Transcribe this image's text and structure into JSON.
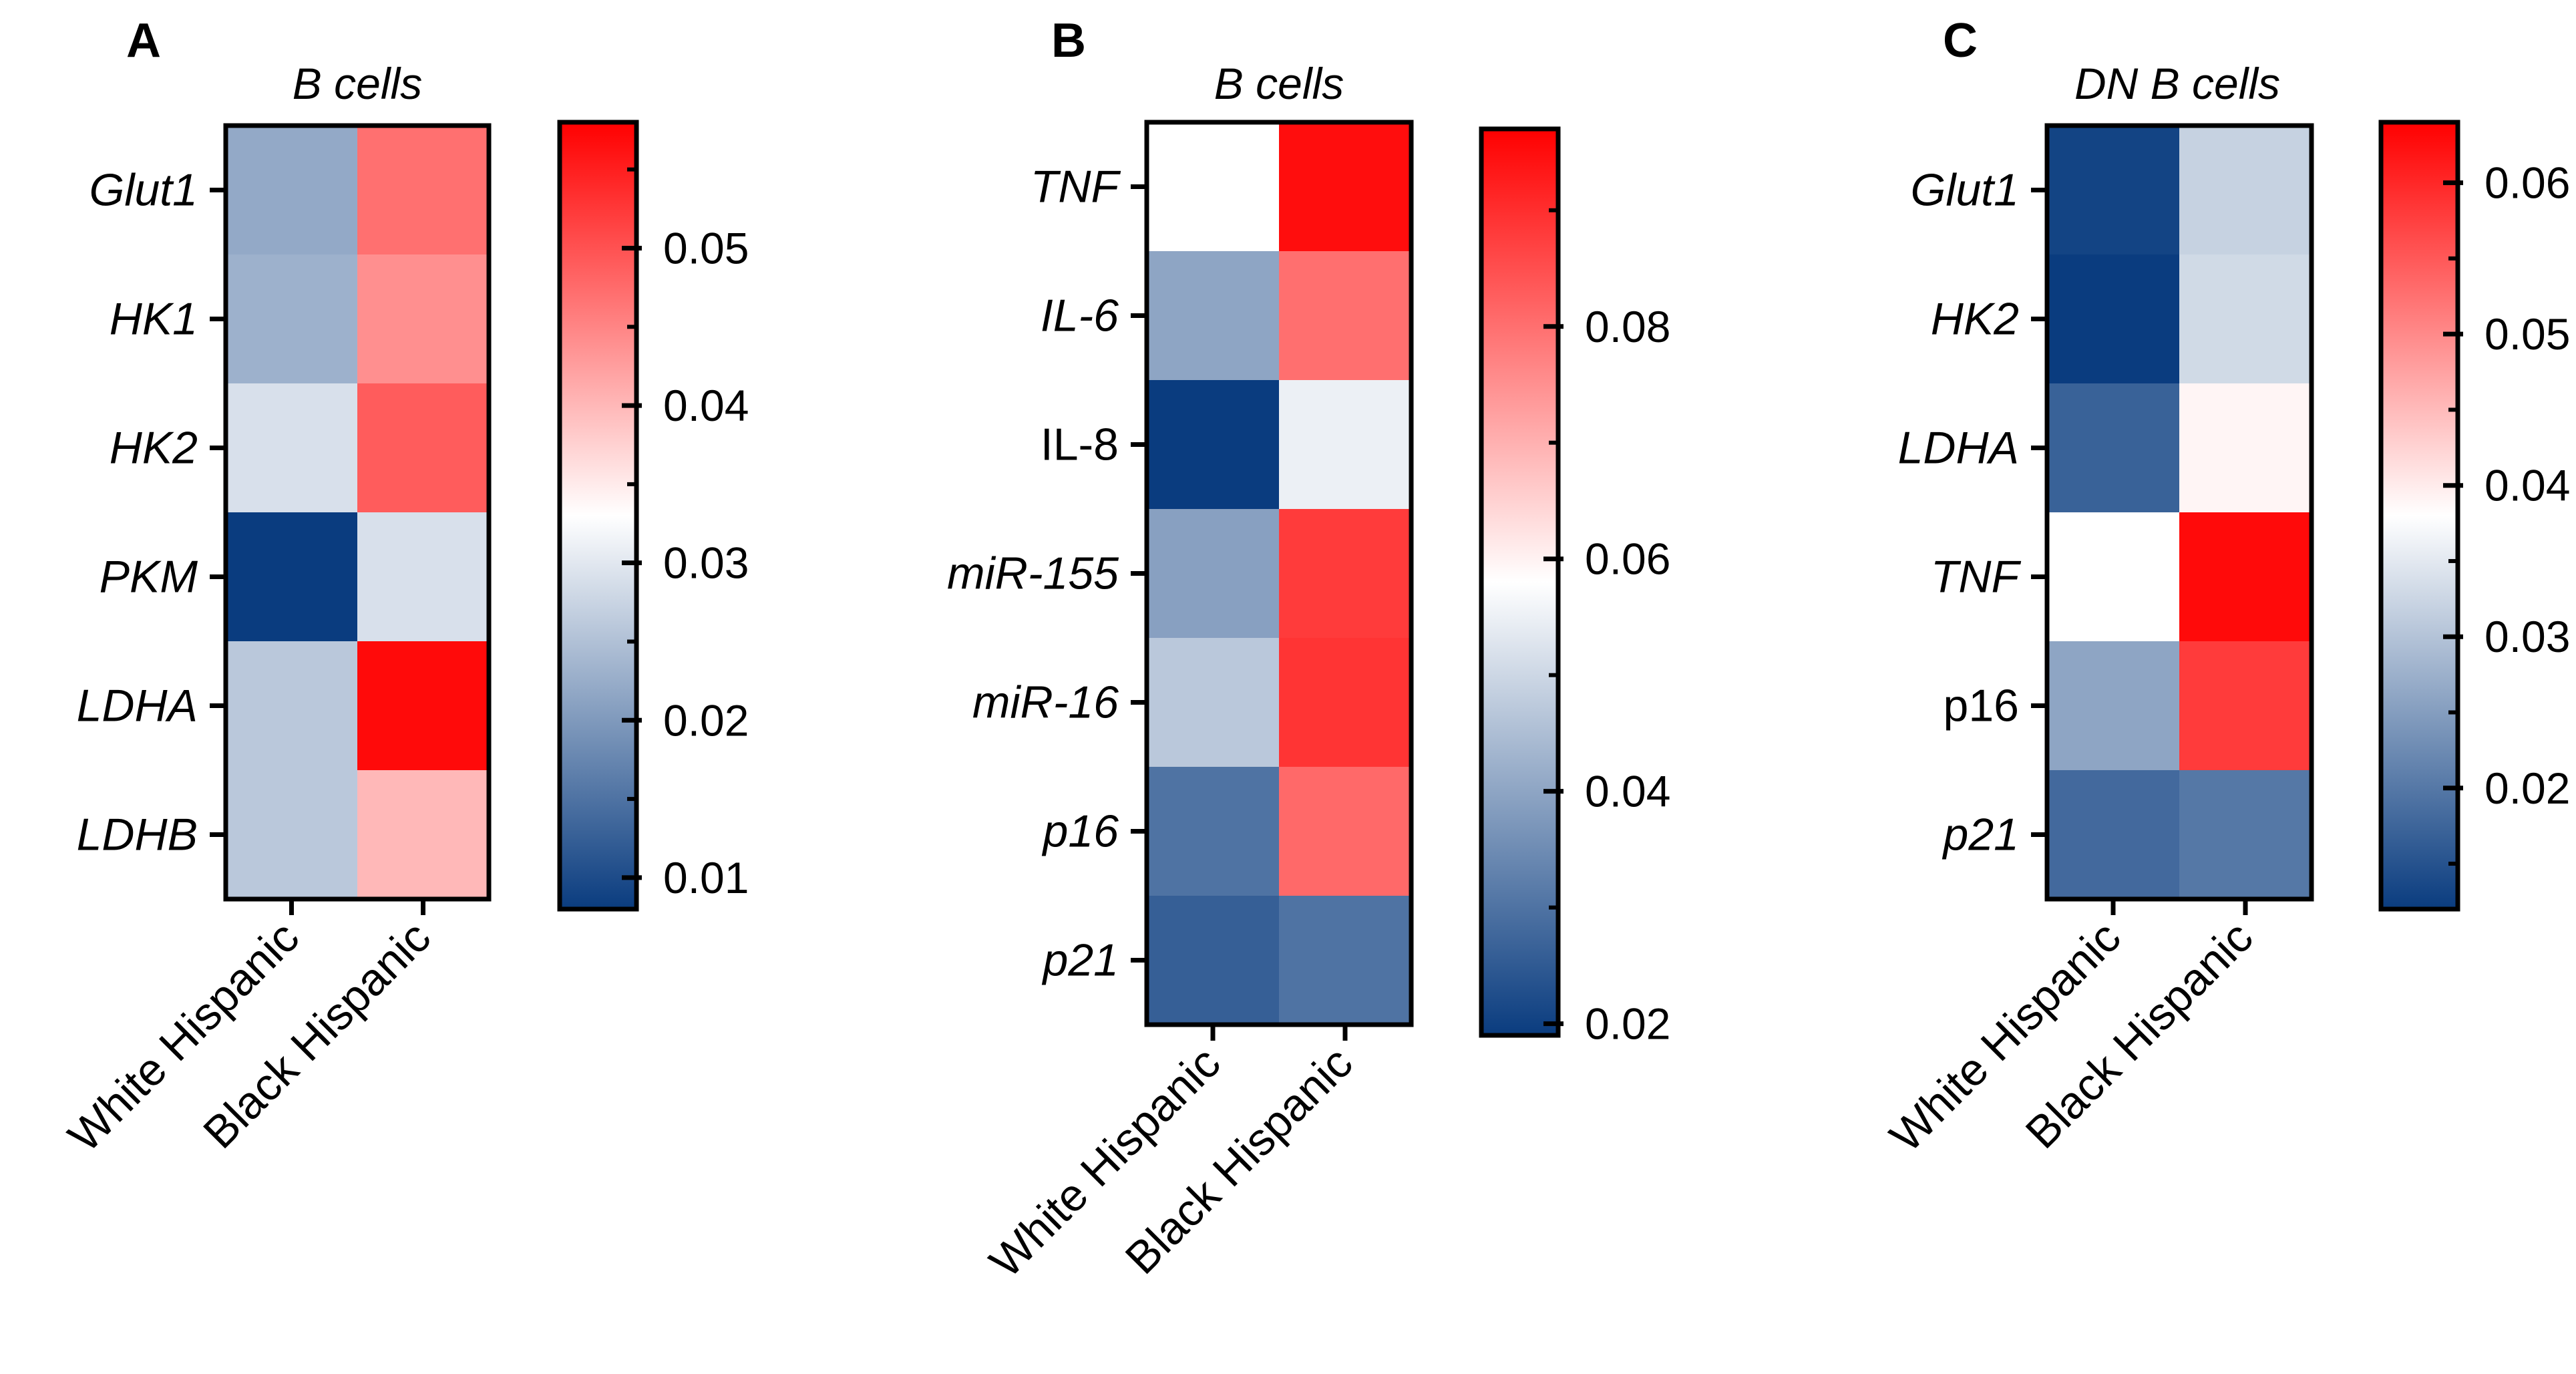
{
  "figure": {
    "panels": [
      {
        "letter": "A"
      },
      {
        "letter": "B"
      },
      {
        "letter": "C"
      }
    ]
  },
  "chart_data": [
    {
      "type": "heatmap",
      "panel": "A",
      "title": "B cells",
      "title_italic": true,
      "columns": [
        "White Hispanic",
        "Black Hispanic"
      ],
      "rows": [
        {
          "label": "Glut1",
          "italic": true
        },
        {
          "label": "HK1",
          "italic": true
        },
        {
          "label": "HK2",
          "italic": true
        },
        {
          "label": "PKM",
          "italic": true
        },
        {
          "label": "LDHA",
          "italic": true
        },
        {
          "label": "LDHB",
          "italic": true
        }
      ],
      "values": [
        [
          0.022,
          0.047
        ],
        [
          0.023,
          0.044
        ],
        [
          0.029,
          0.049
        ],
        [
          0.008,
          0.029
        ],
        [
          0.026,
          0.057
        ],
        [
          0.026,
          0.04
        ]
      ],
      "colorbar": {
        "min": 0.008,
        "max": 0.058,
        "ticks": [
          0.01,
          0.02,
          0.03,
          0.04,
          0.05
        ],
        "tick_labels": [
          "0.01",
          "0.02",
          "0.03",
          "0.04",
          "0.05"
        ],
        "colors": {
          "low": "#0a3c7f",
          "mid": "#ffffff",
          "high": "#ff0000"
        }
      }
    },
    {
      "type": "heatmap",
      "panel": "B",
      "title": "B cells",
      "title_italic": true,
      "columns": [
        "White Hispanic",
        "Black Hispanic"
      ],
      "rows": [
        {
          "label": "TNF",
          "italic": true
        },
        {
          "label": "IL-6",
          "italic": true
        },
        {
          "label": "IL-8",
          "italic": false
        },
        {
          "label": "miR-155",
          "italic": true
        },
        {
          "label": "miR-16",
          "italic": true
        },
        {
          "label": "p16",
          "italic": true
        },
        {
          "label": "p21",
          "italic": true
        }
      ],
      "values": [
        [
          0.058,
          0.095
        ],
        [
          0.04,
          0.08
        ],
        [
          0.019,
          0.055
        ],
        [
          0.039,
          0.088
        ],
        [
          0.047,
          0.089
        ],
        [
          0.03,
          0.081
        ],
        [
          0.026,
          0.03
        ]
      ],
      "colorbar": {
        "min": 0.019,
        "max": 0.097,
        "ticks": [
          0.02,
          0.04,
          0.06,
          0.08
        ],
        "tick_labels": [
          "0.02",
          "0.04",
          "0.06",
          "0.08"
        ],
        "colors": {
          "low": "#0a3c7f",
          "mid": "#ffffff",
          "high": "#ff0000"
        }
      }
    },
    {
      "type": "heatmap",
      "panel": "C",
      "title": "DN B cells",
      "title_italic": true,
      "columns": [
        "White Hispanic",
        "Black Hispanic"
      ],
      "rows": [
        {
          "label": "Glut1",
          "italic": true
        },
        {
          "label": "HK2",
          "italic": true
        },
        {
          "label": "LDHA",
          "italic": true
        },
        {
          "label": "TNF",
          "italic": true
        },
        {
          "label": "p16",
          "italic": false
        },
        {
          "label": "p21",
          "italic": true
        }
      ],
      "values": [
        [
          0.013,
          0.032
        ],
        [
          0.012,
          0.033
        ],
        [
          0.017,
          0.039
        ],
        [
          0.038,
          0.063
        ],
        [
          0.026,
          0.058
        ],
        [
          0.018,
          0.02
        ]
      ],
      "colorbar": {
        "min": 0.012,
        "max": 0.064,
        "ticks": [
          0.02,
          0.03,
          0.04,
          0.05,
          0.06
        ],
        "tick_labels": [
          "0.02",
          "0.03",
          "0.04",
          "0.05",
          "0.06"
        ],
        "colors": {
          "low": "#0a3c7f",
          "mid": "#ffffff",
          "high": "#ff0000"
        }
      }
    }
  ]
}
